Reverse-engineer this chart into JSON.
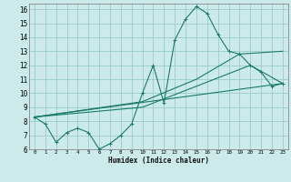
{
  "xlabel": "Humidex (Indice chaleur)",
  "bg_color": "#cceaea",
  "grid_color": "#99cccc",
  "line_color": "#1a7a6a",
  "xlim": [
    -0.5,
    23.5
  ],
  "ylim": [
    6,
    16.4
  ],
  "xticks": [
    0,
    1,
    2,
    3,
    4,
    5,
    6,
    7,
    8,
    9,
    10,
    11,
    12,
    13,
    14,
    15,
    16,
    17,
    18,
    19,
    20,
    21,
    22,
    23
  ],
  "yticks": [
    6,
    7,
    8,
    9,
    10,
    11,
    12,
    13,
    14,
    15,
    16
  ],
  "line1_x": [
    0,
    1,
    2,
    3,
    4,
    5,
    6,
    7,
    8,
    9,
    10,
    11,
    12,
    13,
    14,
    15,
    16,
    17,
    18,
    19,
    20,
    21,
    22,
    23
  ],
  "line1_y": [
    8.3,
    7.8,
    6.5,
    7.2,
    7.5,
    7.2,
    6.0,
    6.4,
    7.0,
    7.8,
    10.0,
    12.0,
    9.3,
    13.8,
    15.3,
    16.2,
    15.7,
    14.2,
    13.0,
    12.8,
    12.0,
    11.5,
    10.5,
    10.7
  ],
  "line2_x": [
    0,
    23
  ],
  "line2_y": [
    8.3,
    10.7
  ],
  "line3_x": [
    0,
    10,
    15,
    19,
    23
  ],
  "line3_y": [
    8.3,
    9.4,
    11.0,
    12.8,
    13.0
  ],
  "line4_x": [
    0,
    10,
    20,
    23
  ],
  "line4_y": [
    8.3,
    9.0,
    12.0,
    10.7
  ]
}
